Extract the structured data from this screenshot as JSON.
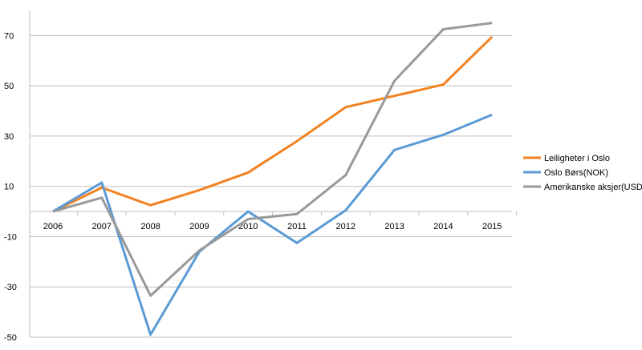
{
  "chart_data": {
    "type": "line",
    "categories": [
      "2006",
      "2007",
      "2008",
      "2009",
      "2010",
      "2011",
      "2012",
      "2013",
      "2014",
      "2015"
    ],
    "series": [
      {
        "name": "Leiligheter i Oslo",
        "color": "#f28220",
        "values": [
          0,
          9.5,
          2.5,
          8.5,
          15.5,
          28,
          41.5,
          46,
          50.5,
          69.5
        ]
      },
      {
        "name": "Oslo Børs(NOK)",
        "color": "#5b9bd5",
        "values": [
          0,
          11.5,
          -49,
          -16,
          0,
          -12.5,
          0.5,
          24.5,
          30.5,
          38.5
        ]
      },
      {
        "name": "Amerikanske aksjer(USD)",
        "color": "#999999",
        "values": [
          0,
          5.5,
          -33.5,
          -15.5,
          -3,
          -1,
          14.5,
          52,
          72.5,
          75
        ]
      }
    ],
    "y_ticks": [
      70,
      50,
      30,
      10,
      -10,
      -30,
      -50
    ],
    "ylim": [
      -50,
      80
    ],
    "grid": true,
    "legend_position": "right",
    "title": "",
    "xlabel": "",
    "ylabel": ""
  }
}
